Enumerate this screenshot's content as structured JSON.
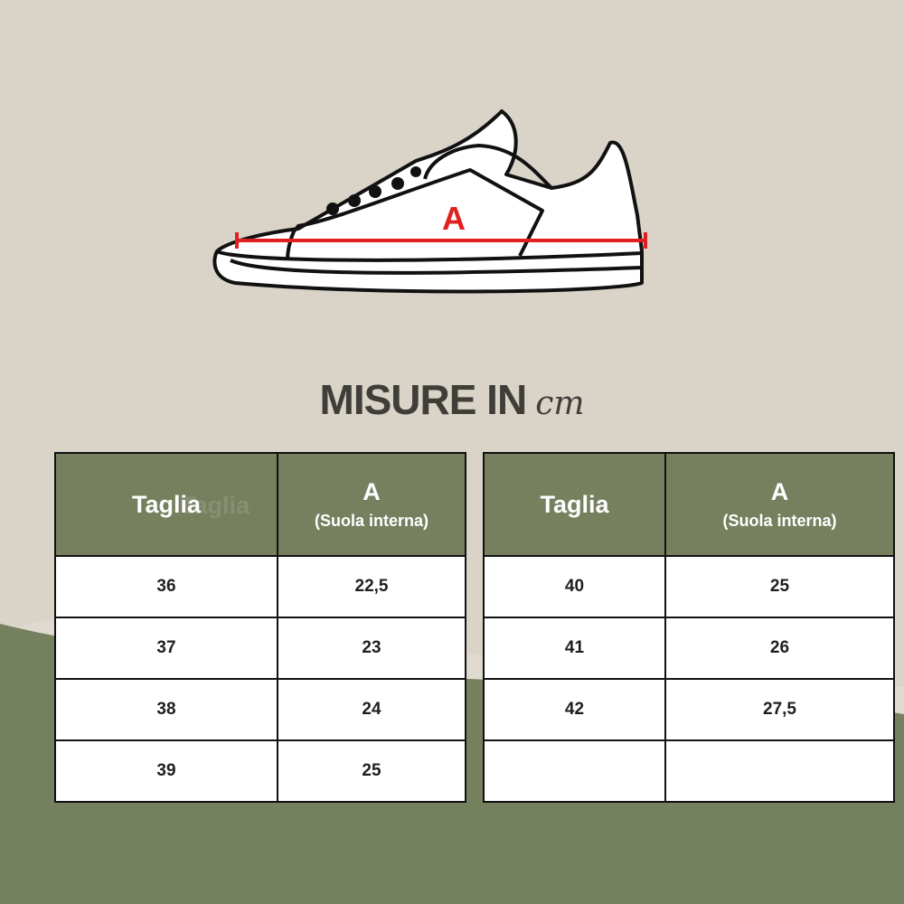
{
  "title": {
    "main": "MISURE IN",
    "unit": "cm"
  },
  "diagram": {
    "measure_label": "A"
  },
  "colors": {
    "background": "#d9d3c8",
    "header_green": "#76805f",
    "measure_line": "#e02020",
    "text_dark": "#3f3e39"
  },
  "tables": [
    {
      "headers": {
        "size": "Taglia",
        "measure": "A",
        "measure_sub": "(Suola interna)"
      },
      "rows": [
        {
          "size": "36",
          "value": "22,5"
        },
        {
          "size": "37",
          "value": "23"
        },
        {
          "size": "38",
          "value": "24"
        },
        {
          "size": "39",
          "value": "25"
        }
      ]
    },
    {
      "headers": {
        "size": "Taglia",
        "measure": "A",
        "measure_sub": "(Suola interna)"
      },
      "rows": [
        {
          "size": "40",
          "value": "25"
        },
        {
          "size": "41",
          "value": "26"
        },
        {
          "size": "42",
          "value": "27,5"
        },
        {
          "size": "",
          "value": ""
        }
      ]
    }
  ]
}
